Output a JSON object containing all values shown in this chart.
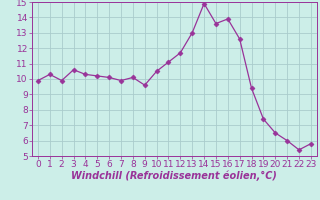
{
  "x": [
    0,
    1,
    2,
    3,
    4,
    5,
    6,
    7,
    8,
    9,
    10,
    11,
    12,
    13,
    14,
    15,
    16,
    17,
    18,
    19,
    20,
    21,
    22,
    23
  ],
  "y": [
    9.9,
    10.3,
    9.9,
    10.6,
    10.3,
    10.2,
    10.1,
    9.9,
    10.1,
    9.6,
    10.5,
    11.1,
    11.7,
    13.0,
    14.9,
    13.6,
    13.9,
    12.6,
    9.4,
    7.4,
    6.5,
    6.0,
    5.4,
    5.8
  ],
  "line_color": "#993399",
  "marker": "D",
  "marker_size": 2.5,
  "bg_color": "#cceee8",
  "grid_color": "#aacccc",
  "xlabel": "Windchill (Refroidissement éolien,°C)",
  "xlabel_fontsize": 7,
  "tick_fontsize": 6.5,
  "ylim": [
    5,
    15
  ],
  "xlim": [
    -0.5,
    23.5
  ],
  "yticks": [
    5,
    6,
    7,
    8,
    9,
    10,
    11,
    12,
    13,
    14,
    15
  ],
  "xticks": [
    0,
    1,
    2,
    3,
    4,
    5,
    6,
    7,
    8,
    9,
    10,
    11,
    12,
    13,
    14,
    15,
    16,
    17,
    18,
    19,
    20,
    21,
    22,
    23
  ]
}
